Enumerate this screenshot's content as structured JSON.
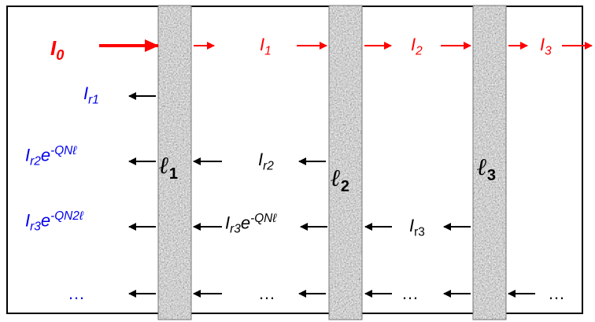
{
  "incident": {
    "symbol": "I",
    "sub": "0"
  },
  "transmitted": [
    {
      "symbol": "I",
      "sub": "1"
    },
    {
      "symbol": "I",
      "sub": "2"
    },
    {
      "symbol": "I",
      "sub": "3"
    }
  ],
  "reflected_left": [
    {
      "symbol": "I",
      "sub": "r1",
      "factor": "",
      "exp": ""
    },
    {
      "symbol": "I",
      "sub": "r2",
      "factor": "e",
      "exp": "-QN",
      "exp_ell": "ℓ"
    },
    {
      "symbol": "I",
      "sub": "r3",
      "factor": "e",
      "exp": "-QN2",
      "exp_ell": "ℓ"
    }
  ],
  "reflected_mid": {
    "symbol": "I",
    "sub": "r2"
  },
  "reflected_mid2": {
    "symbol": "I",
    "sub": "r3",
    "factor": "e",
    "exp": "-QN",
    "exp_ell": "ℓ"
  },
  "reflected_right": {
    "symbol": "I",
    "sub": "r3"
  },
  "layers": [
    {
      "symbol": "ℓ",
      "sub": "1"
    },
    {
      "symbol": "ℓ",
      "sub": "2"
    },
    {
      "symbol": "ℓ",
      "sub": "3"
    }
  ],
  "ellipsis": "…",
  "colors": {
    "incident": "#ff0000",
    "reflected": "#0000ee",
    "text": "#000000",
    "layer": "#9a9a9a"
  }
}
